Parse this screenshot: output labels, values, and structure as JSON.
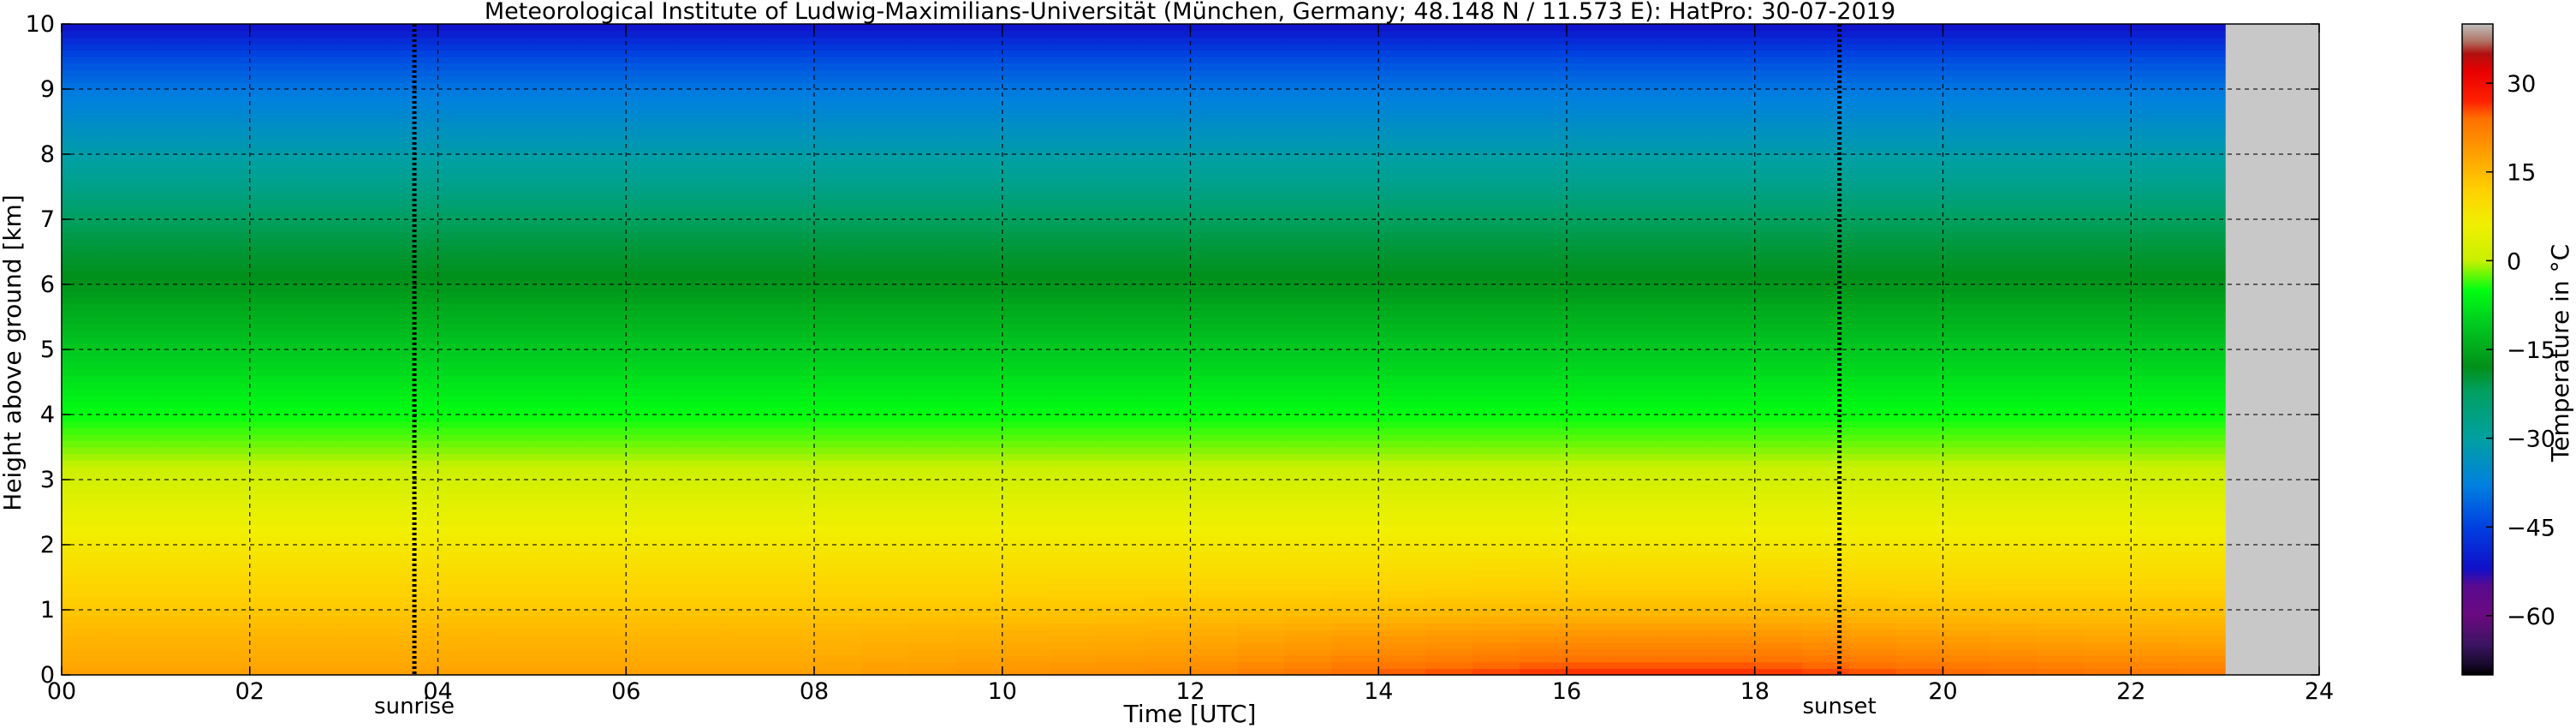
{
  "chart_data": {
    "type": "heatmap",
    "title": "Meteorological Institute of Ludwig-Maximilians-Universität (München, Germany; 48.148 N / 11.573 E):    HatPro: 30-07-2019",
    "xlabel": "Time [UTC]",
    "ylabel": "Height above ground [km]",
    "colorbar_label": "Temperature in °C",
    "xlim": [
      0,
      24
    ],
    "ylim": [
      0,
      10
    ],
    "x_ticks": [
      0,
      2,
      4,
      6,
      8,
      10,
      12,
      14,
      16,
      18,
      20,
      22,
      24
    ],
    "x_tick_labels": [
      "00",
      "02",
      "04",
      "06",
      "08",
      "10",
      "12",
      "14",
      "16",
      "18",
      "20",
      "22",
      "24"
    ],
    "y_ticks": [
      0,
      1,
      2,
      3,
      4,
      5,
      6,
      7,
      8,
      9,
      10
    ],
    "y_tick_labels": [
      "0",
      "1",
      "2",
      "3",
      "4",
      "5",
      "6",
      "7",
      "8",
      "9",
      "10"
    ],
    "colorbar_range": [
      -70,
      40
    ],
    "colorbar_ticks": [
      -60,
      -45,
      -30,
      -15,
      0,
      15,
      30
    ],
    "colorbar_tick_labels": [
      "−60",
      "−45",
      "−30",
      "−15",
      "0",
      "15",
      "30"
    ],
    "colormap_stops": [
      {
        "value": -70,
        "color": "#000000"
      },
      {
        "value": -68,
        "color": "#1a0a30"
      },
      {
        "value": -65,
        "color": "#3a1460"
      },
      {
        "value": -60,
        "color": "#6a0a80"
      },
      {
        "value": -55,
        "color": "#5a0a90"
      },
      {
        "value": -52,
        "color": "#1010c8"
      },
      {
        "value": -45,
        "color": "#0040e0"
      },
      {
        "value": -38,
        "color": "#0080e0"
      },
      {
        "value": -30,
        "color": "#00a0a0"
      },
      {
        "value": -22,
        "color": "#00a060"
      },
      {
        "value": -18,
        "color": "#00901a"
      },
      {
        "value": -10,
        "color": "#00d020"
      },
      {
        "value": -5,
        "color": "#00ff10"
      },
      {
        "value": 0,
        "color": "#c8f000"
      },
      {
        "value": 6,
        "color": "#f0f000"
      },
      {
        "value": 12,
        "color": "#ffd000"
      },
      {
        "value": 18,
        "color": "#ffa000"
      },
      {
        "value": 24,
        "color": "#ff7000"
      },
      {
        "value": 27,
        "color": "#ff2000"
      },
      {
        "value": 32,
        "color": "#e80000"
      },
      {
        "value": 35,
        "color": "#b01010"
      },
      {
        "value": 37,
        "color": "#b07060"
      },
      {
        "value": 40,
        "color": "#c0c0c0"
      }
    ],
    "data_end_hour": 23,
    "missing_color": "#c8c8c8",
    "profile": {
      "heights_km": [
        0,
        0.3,
        0.7,
        1,
        1.5,
        2,
        2.5,
        3,
        3.5,
        4,
        4.5,
        5,
        5.5,
        6,
        6.5,
        7,
        7.5,
        8,
        8.5,
        9,
        9.5,
        10
      ],
      "times_h": [
        0,
        4,
        8,
        12,
        14,
        16,
        18,
        20,
        22.5
      ],
      "temperature_c": [
        [
          18,
          18,
          18,
          21,
          25,
          27,
          27,
          25,
          23
        ],
        [
          16.5,
          16.5,
          16.5,
          18.5,
          21,
          23,
          23,
          21,
          19.5
        ],
        [
          15,
          15,
          15,
          16,
          17.5,
          18.5,
          18.5,
          17,
          16
        ],
        [
          13,
          13,
          13,
          13.5,
          14,
          14.5,
          14.5,
          14,
          13.5
        ],
        [
          10.5,
          10.5,
          10.5,
          10.5,
          10.5,
          11,
          11,
          10.5,
          10.5
        ],
        [
          7.5,
          7.5,
          7.5,
          7.5,
          7.5,
          7.5,
          7.5,
          7.5,
          7.5
        ],
        [
          4.5,
          4.5,
          4.5,
          4.5,
          4.5,
          4.5,
          4.5,
          4.5,
          4.5
        ],
        [
          1.5,
          1.5,
          1.5,
          1.5,
          1.5,
          1.5,
          1.5,
          1.5,
          1.5
        ],
        [
          -2,
          -2,
          -2,
          -2,
          -2,
          -2,
          -2,
          -2,
          -2
        ],
        [
          -5,
          -5,
          -5,
          -5,
          -5,
          -5,
          -5,
          -5,
          -5
        ],
        [
          -8,
          -8,
          -8,
          -8,
          -8,
          -8,
          -8,
          -8,
          -8
        ],
        [
          -11,
          -11,
          -11,
          -11,
          -11,
          -11,
          -11,
          -11,
          -11
        ],
        [
          -14,
          -14,
          -14,
          -14,
          -14,
          -14,
          -14,
          -14,
          -14
        ],
        [
          -17.5,
          -17.5,
          -17.5,
          -17.5,
          -17.5,
          -17.5,
          -17.5,
          -17.5,
          -17.5
        ],
        [
          -19.5,
          -19.5,
          -19.5,
          -19.5,
          -19.5,
          -19.5,
          -19.5,
          -19.5,
          -19.5
        ],
        [
          -22,
          -22,
          -22,
          -22,
          -22,
          -22,
          -22,
          -22,
          -22
        ],
        [
          -27,
          -27,
          -27,
          -27,
          -27,
          -27,
          -27,
          -27,
          -27
        ],
        [
          -31,
          -31,
          -31,
          -31,
          -31,
          -31,
          -31,
          -31,
          -31
        ],
        [
          -35,
          -35,
          -35,
          -35,
          -35,
          -35,
          -35,
          -35,
          -35
        ],
        [
          -39,
          -39,
          -39,
          -39,
          -39,
          -39,
          -39,
          -39,
          -39
        ],
        [
          -44,
          -44,
          -44,
          -44,
          -44,
          -44,
          -44,
          -44,
          -44
        ],
        [
          -52,
          -52,
          -52,
          -52,
          -52,
          -52,
          -52,
          -52,
          -52
        ]
      ]
    },
    "annotations": [
      {
        "label": "sunrise",
        "hour": 3.75
      },
      {
        "label": "sunset",
        "hour": 18.9
      }
    ],
    "grid": true
  }
}
